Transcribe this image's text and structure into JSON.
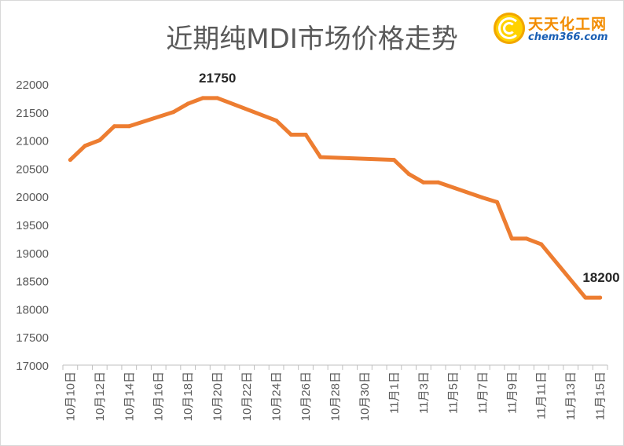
{
  "title": "近期纯MDI市场价格走势",
  "logo": {
    "name": "天天化工网",
    "url": "chem366.com"
  },
  "colors": {
    "line": "#ed7d31",
    "axis": "#bfbfbf",
    "text": "#595959",
    "label": "#262626"
  },
  "chart_data": {
    "type": "line",
    "title": "近期纯MDI市场价格走势",
    "xlabel": "",
    "ylabel": "",
    "ylim": [
      17000,
      22000
    ],
    "yticks": [
      17000,
      17500,
      18000,
      18500,
      19000,
      19500,
      20000,
      20500,
      21000,
      21500,
      22000
    ],
    "grid": false,
    "legend": "none",
    "x_tick_labels": [
      "10月10日",
      "10月12日",
      "10月14日",
      "10月16日",
      "10月18日",
      "10月20日",
      "10月22日",
      "10月24日",
      "10月26日",
      "10月28日",
      "10月30日",
      "11月1日",
      "11月3日",
      "11月5日",
      "11月7日",
      "11月9日",
      "11月11日",
      "11月13日",
      "11月15日"
    ],
    "series": [
      {
        "x": [
          "10月10日",
          "10月11日",
          "10月12日",
          "10月13日",
          "10月14日",
          "10月17日",
          "10月18日",
          "10月19日",
          "10月20日",
          "10月24日",
          "10月25日",
          "10月26日",
          "10月27日",
          "11月1日",
          "11月2日",
          "11月3日",
          "11月4日",
          "11月7日",
          "11月8日",
          "11月9日",
          "11月10日",
          "11月11日",
          "11月14日",
          "11月15日"
        ],
        "values": [
          20650,
          20900,
          21000,
          21250,
          21250,
          21500,
          21650,
          21750,
          21750,
          21350,
          21100,
          21100,
          20700,
          20650,
          20400,
          20250,
          20250,
          19980,
          19900,
          19250,
          19250,
          19150,
          18200,
          18200
        ]
      }
    ],
    "annotations": [
      {
        "x": "10月20日",
        "text": "21750"
      },
      {
        "x": "11月15日",
        "text": "18200"
      }
    ]
  }
}
